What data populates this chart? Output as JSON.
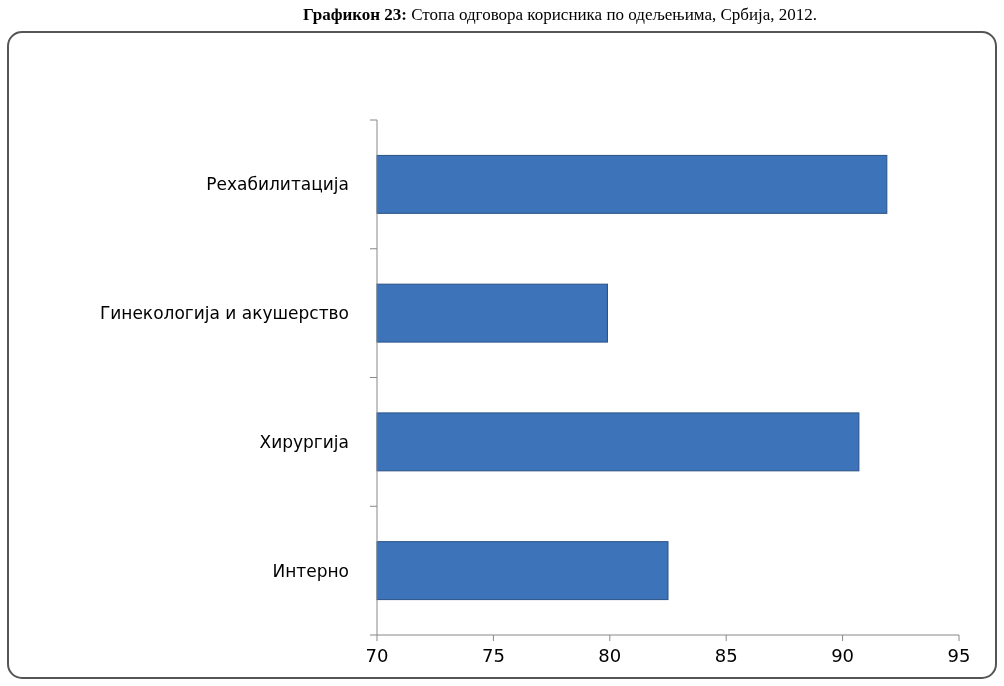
{
  "chart_data": {
    "type": "bar",
    "orientation": "horizontal",
    "title": "Графикон 23: Стопа одговора корисника по одељењима, Србија, 2012.",
    "categories": [
      "Рехабилитација",
      "Гинекологија и акушерство",
      "Хирургија",
      "Интерно"
    ],
    "values": [
      91.9,
      79.9,
      90.7,
      82.5
    ],
    "color": "#3c73b9",
    "xlim": [
      70,
      95
    ],
    "xticks": [
      70,
      75,
      80,
      85,
      90,
      95
    ],
    "grid": false
  }
}
